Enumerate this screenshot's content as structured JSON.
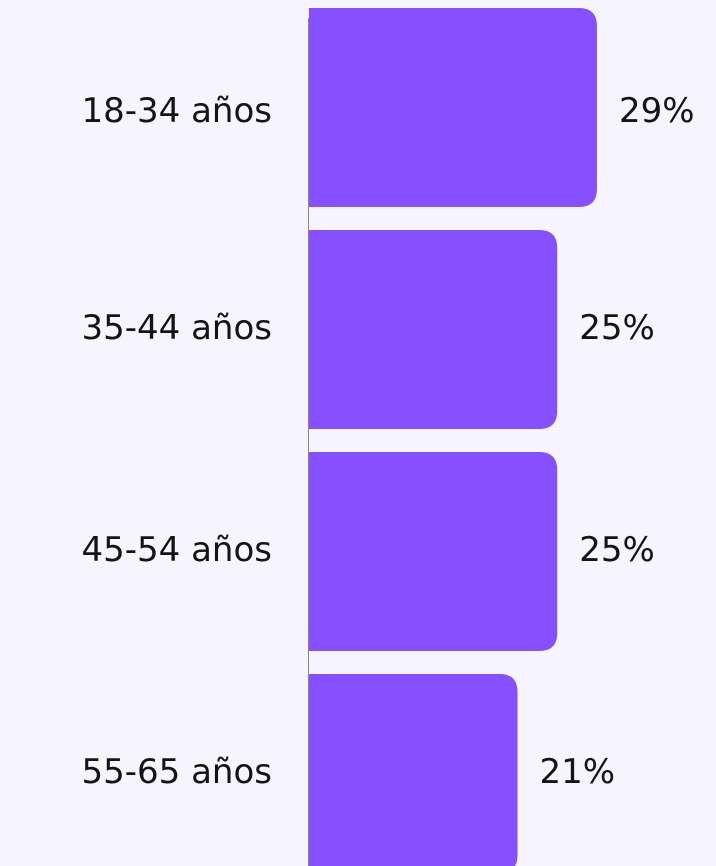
{
  "chart_data": {
    "type": "bar",
    "orientation": "horizontal",
    "color": "#8650fe",
    "categories": [
      "18-34 años",
      "35-44 años",
      "45-54 años",
      "55-65 años"
    ],
    "values": [
      29,
      25,
      25,
      21
    ],
    "value_labels": [
      "29%",
      "25%",
      "25%",
      "21%"
    ]
  }
}
